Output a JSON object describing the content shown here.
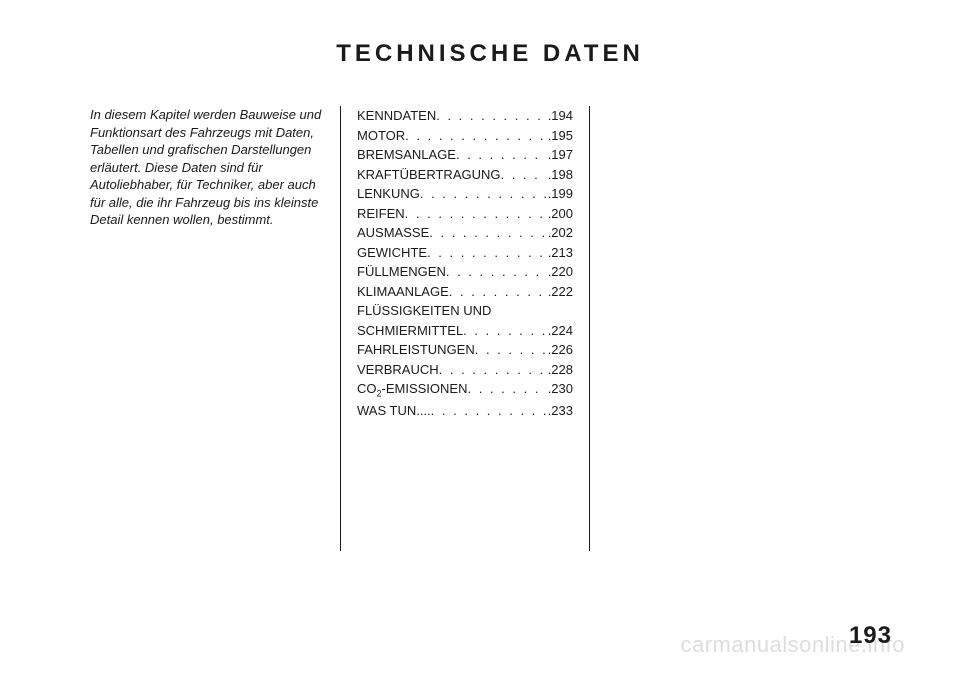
{
  "title": "TECHNISCHE DATEN",
  "intro": "In diesem Kapitel werden Bauweise und Funktionsart des Fahrzeugs mit Daten, Tabellen und grafischen Darstellungen erläutert. Diese Daten sind für Autoliebhaber, für Techniker, aber auch für alle, die ihr Fahrzeug bis ins kleinste Detail kennen wollen, bestimmt.",
  "toc": [
    {
      "label": "KENNDATEN",
      "page": "194"
    },
    {
      "label": "MOTOR",
      "page": "195"
    },
    {
      "label": "BREMSANLAGE",
      "page": "197"
    },
    {
      "label": "KRAFTÜBERTRAGUNG",
      "page": "198"
    },
    {
      "label": "LENKUNG",
      "page": "199"
    },
    {
      "label": "REIFEN",
      "page": "200"
    },
    {
      "label": "AUSMASSE",
      "page": "202"
    },
    {
      "label": "GEWICHTE",
      "page": "213"
    },
    {
      "label": "FÜLLMENGEN",
      "page": "220"
    },
    {
      "label": "KLIMAANLAGE",
      "page": "222"
    },
    {
      "label": "FLÜSSIGKEITEN UND SCHMIERMITTEL",
      "page": "224",
      "wrap": true
    },
    {
      "label": "FAHRLEISTUNGEN",
      "page": "226"
    },
    {
      "label": "VERBRAUCH",
      "page": "228"
    },
    {
      "label": "CO",
      "sub": "2",
      "suffix": "-EMISSIONEN",
      "page": "230"
    },
    {
      "label": "WAS TUN....",
      "page": "233"
    }
  ],
  "pageNumber": "193",
  "watermark": "carmanualsonline.info",
  "style": {
    "bg": "#ffffff",
    "text": "#1a1a1a",
    "titleSize": 24,
    "bodySize": 13,
    "watermarkColor": "#dddddd"
  }
}
